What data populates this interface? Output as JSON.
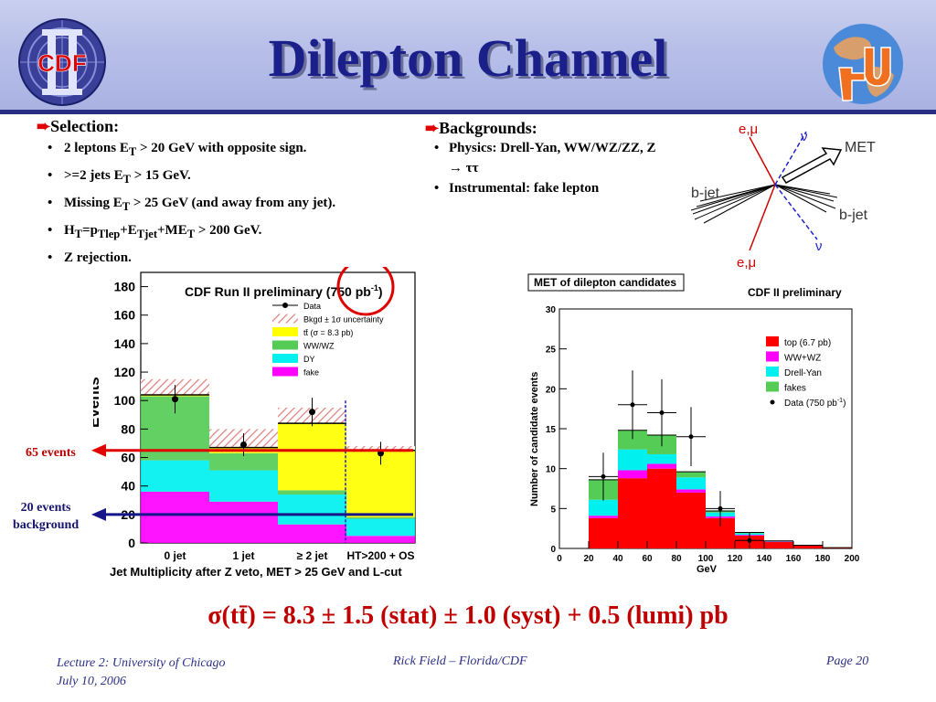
{
  "slide": {
    "title": "Dilepton Channel",
    "logo_left_text": "CDF",
    "result_text": "σ(tt̄) =  8.3 ± 1.5 (stat) ± 1.0 (syst) + 0.5 (lumi) pb"
  },
  "selection": {
    "heading": "Selection:",
    "items": [
      {
        "a": "2 leptons E",
        "sub1": "T",
        "b": " > 20 GeV with opposite sign."
      },
      {
        "a": ">=2 jets E",
        "sub1": "T",
        "b": " > 15 GeV."
      },
      {
        "a": "Missing E",
        "sub1": "T",
        "b": " > 25 GeV (and away from any jet)."
      },
      {
        "a": "H",
        "sub1": "T",
        "b": "=p",
        "sub2": "Tlep",
        "c": "+E",
        "sub3": "Tjet",
        "d": "+ME",
        "sub4": "T",
        "e": " > 200 GeV."
      },
      {
        "a": "Z rejection."
      }
    ]
  },
  "backgrounds": {
    "heading": "Backgrounds:",
    "items": [
      {
        "line1": "Physics: Drell-Yan, WW/WZ/ZZ,   Z",
        "line2": "→ ττ"
      },
      {
        "line1": "Instrumental: fake lepton"
      }
    ]
  },
  "diagram": {
    "labels": {
      "lep_top": "e,μ",
      "nu_top": "ν",
      "met": "MET",
      "bjet_left": "b-jet",
      "bjet_right": "b-jet",
      "nu_bottom": "ν",
      "lep_bottom": "e,μ"
    }
  },
  "annotations": {
    "events_65": "65 events",
    "events_20_line1": "20 events",
    "events_20_line2": "background"
  },
  "footer": {
    "left_line1": "Lecture 2: University of Chicago",
    "left_line2": "July 10, 2006",
    "center": "Rick Field – Florida/CDF",
    "right": "Page 20"
  },
  "colors": {
    "ttbar_yellow": "#ffff00",
    "ww_green": "#55cc55",
    "dy_cyan": "#00f0f0",
    "fake_magenta": "#ff00ff",
    "top_red": "#ff0000",
    "arrow_red": "#e00000",
    "arrow_blue": "#16168a"
  },
  "chart_data": [
    {
      "type": "bar",
      "title": "CDF Run II preliminary (750 pb",
      "title_sup": "-1",
      "title_end": ")",
      "xlabel": "Jet Multiplicity after Z veto, MET > 25 GeV and L-cut",
      "ylabel": "Events",
      "categories": [
        "0 jet",
        "1 jet",
        "≥ 2 jet",
        "HT>200 + OS"
      ],
      "ylim": [
        0,
        190
      ],
      "yticks": [
        0,
        20,
        40,
        60,
        80,
        100,
        120,
        140,
        160,
        180
      ],
      "stacked": true,
      "series": [
        {
          "name": "fake",
          "values": [
            36,
            29,
            13,
            5
          ]
        },
        {
          "name": "DY",
          "values": [
            22,
            22,
            21,
            12
          ]
        },
        {
          "name": "WW/WZ",
          "values": [
            45,
            12,
            3,
            1
          ]
        },
        {
          "name": "tt̄ (σ = 8.3 pb)",
          "values": [
            1,
            4,
            47,
            47
          ]
        }
      ],
      "uncertainty_band_top": [
        115,
        80,
        95,
        68
      ],
      "data": {
        "name": "Data",
        "values": [
          101,
          69,
          92,
          63
        ],
        "errors": [
          10,
          8,
          10,
          8
        ]
      },
      "legend_entries": [
        "Data",
        "Bkgd ± 1σ uncertainty",
        "tt̄ (σ = 8.3 pb)",
        "WW/WZ",
        "DY",
        "fake"
      ],
      "legend_position": "top-right",
      "reference_lines": [
        {
          "label": "65 events",
          "value": 65
        },
        {
          "label": "20 events background",
          "value": 20
        }
      ]
    },
    {
      "type": "bar",
      "title": "MET of dilepton candidates",
      "subtitle": "CDF II preliminary",
      "xlabel": "GeV",
      "ylabel": "Number of candidate events",
      "xlim": [
        0,
        200
      ],
      "ylim": [
        0,
        30
      ],
      "xticks": [
        0,
        20,
        40,
        60,
        80,
        100,
        120,
        140,
        160,
        180,
        200
      ],
      "yticks": [
        0,
        5,
        10,
        15,
        20,
        25,
        30
      ],
      "bin_edges": [
        20,
        40,
        60,
        80,
        100,
        120,
        140,
        160,
        180,
        200
      ],
      "stacked": true,
      "series": [
        {
          "name": "top (6.7 pb)",
          "values": [
            3.8,
            8.8,
            10.0,
            7.0,
            3.8,
            1.6,
            0.8,
            0.4,
            0.1
          ]
        },
        {
          "name": "WW+WZ",
          "values": [
            0.3,
            1.0,
            0.6,
            0.4,
            0.2,
            0.1,
            0.05,
            0.0,
            0.0
          ]
        },
        {
          "name": "Drell-Yan",
          "values": [
            2.0,
            2.6,
            1.2,
            1.5,
            0.5,
            0.2,
            0.05,
            0.0,
            0.0
          ]
        },
        {
          "name": "fakes",
          "values": [
            2.5,
            2.4,
            2.4,
            0.7,
            0.2,
            0.1,
            0.05,
            0.0,
            0.0
          ]
        }
      ],
      "data": {
        "name": "Data (750 pb",
        "name_sup": "-1",
        "name_end": ")",
        "x": [
          30,
          50,
          70,
          90,
          110,
          130
        ],
        "values": [
          9,
          18,
          17,
          14,
          5,
          1
        ],
        "errors": [
          3.0,
          4.3,
          4.2,
          3.7,
          2.2,
          1.0
        ]
      },
      "legend_position": "top-right"
    }
  ]
}
